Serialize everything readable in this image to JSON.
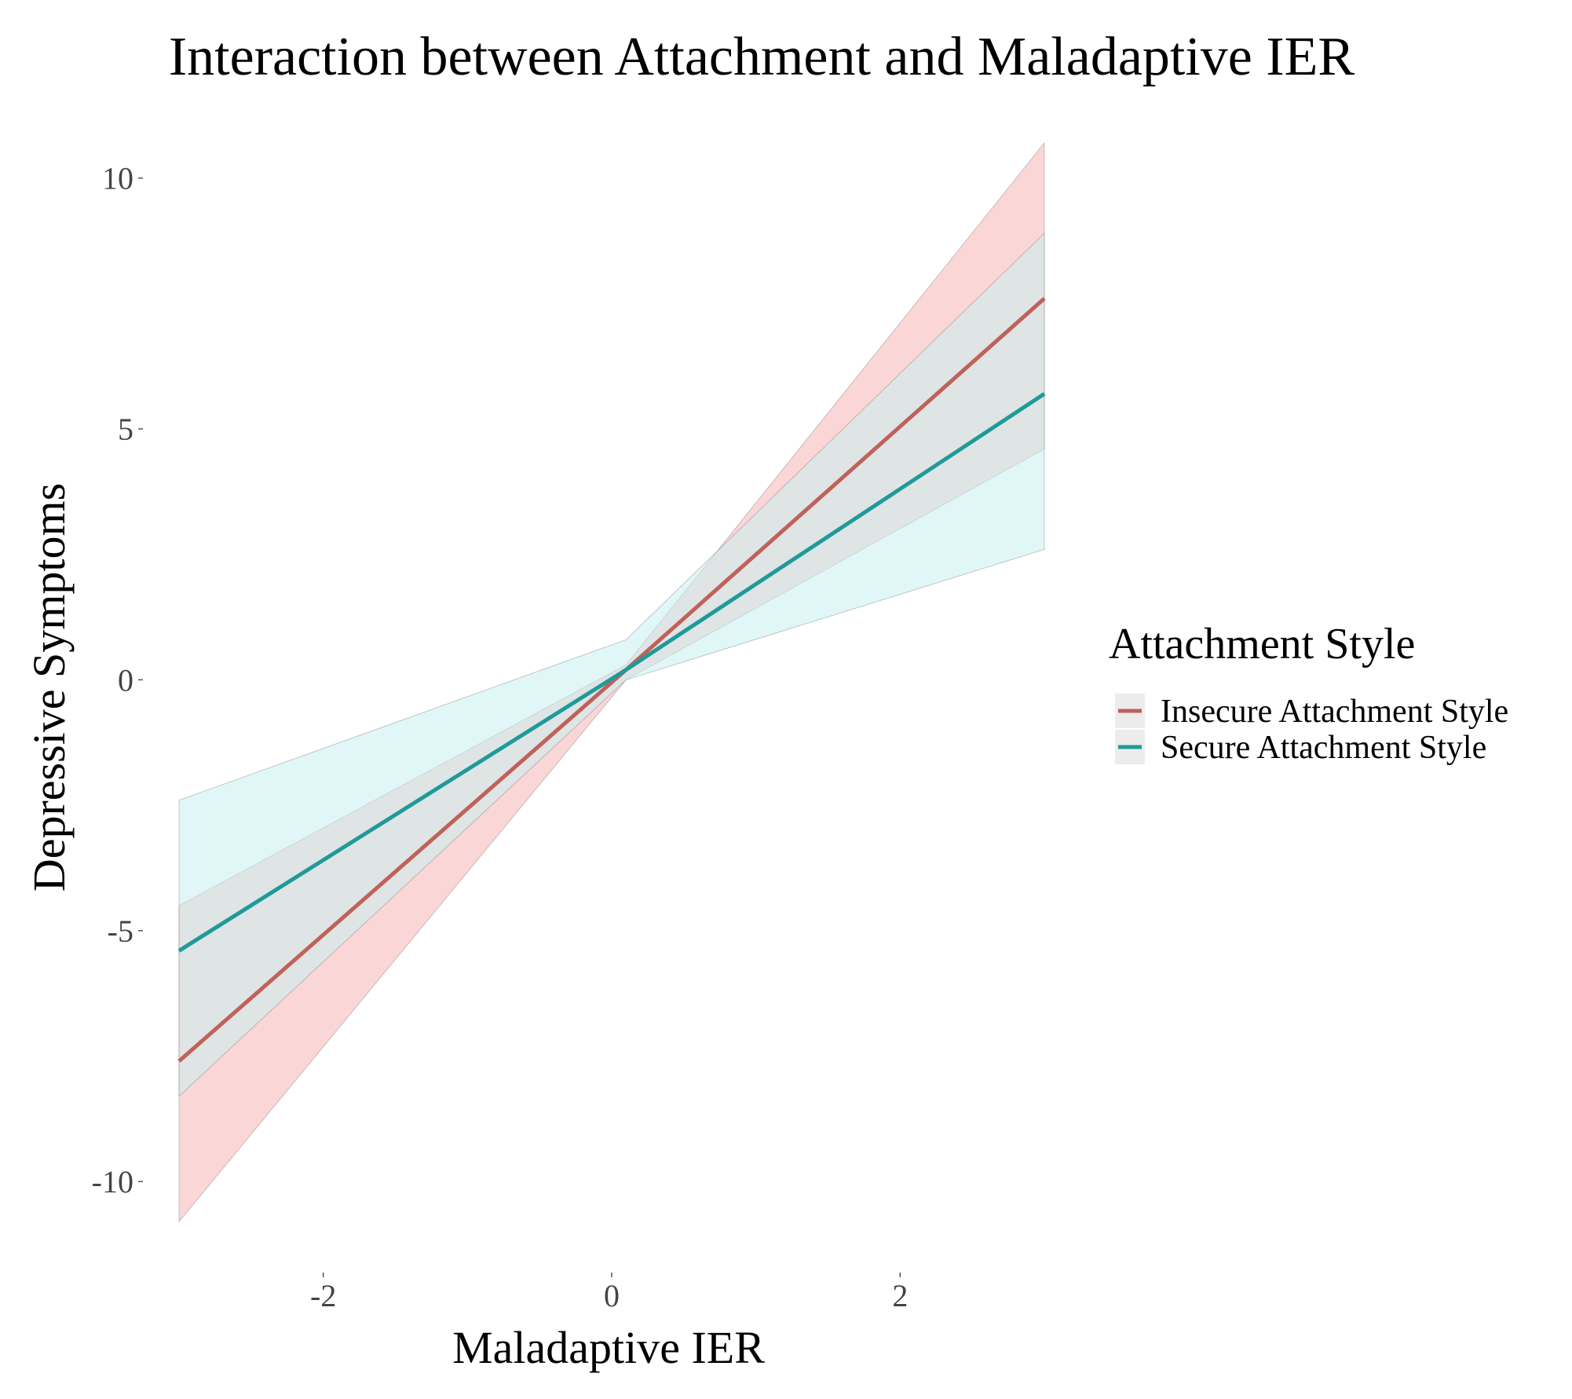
{
  "chart_data": {
    "type": "line",
    "title": "Interaction between Attachment and Maladaptive IER",
    "xlabel": "Maladaptive IER",
    "ylabel": "Depressive Symptoms",
    "xlim": [
      -3,
      3
    ],
    "ylim": [
      -11,
      10.7
    ],
    "x_ticks": [
      -2,
      0,
      2
    ],
    "y_ticks": [
      -10,
      -5,
      0,
      5,
      10
    ],
    "grid": false,
    "legend": {
      "title": "Attachment Style",
      "placement": "right"
    },
    "series": [
      {
        "name": "Insecure Attachment Style",
        "color": "#c0615a",
        "band_color": "#f8b4b4",
        "x": [
          -3,
          0.1,
          3
        ],
        "y": [
          -7.6,
          0.2,
          7.6
        ],
        "lower": [
          -10.8,
          0.0,
          4.6
        ],
        "upper": [
          -4.5,
          0.3,
          10.7
        ]
      },
      {
        "name": "Secure Attachment Style",
        "color": "#1f9a9a",
        "band_color": "#c8f0f0",
        "x": [
          -3,
          0.1,
          3
        ],
        "y": [
          -5.4,
          0.2,
          5.7
        ],
        "lower": [
          -8.3,
          0.0,
          2.6
        ],
        "upper": [
          -2.4,
          0.8,
          8.9
        ]
      }
    ]
  }
}
